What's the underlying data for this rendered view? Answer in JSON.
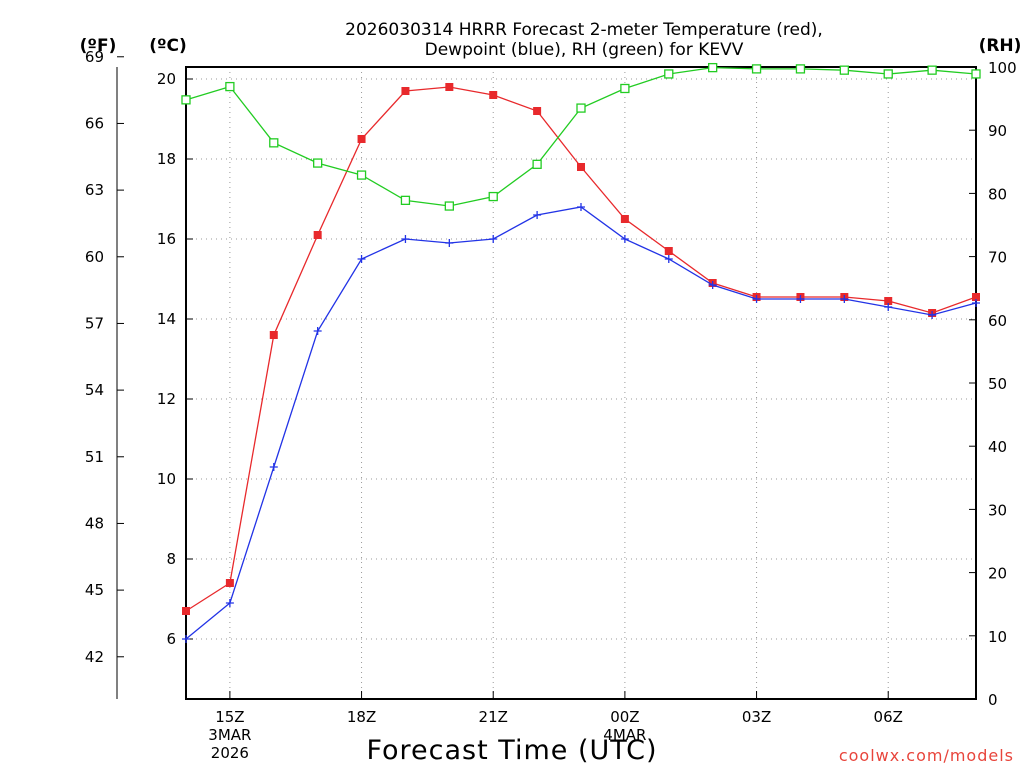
{
  "chart_data": {
    "type": "line",
    "title_line1": "2026030314 HRRR Forecast 2-meter Temperature (red),",
    "title_line2": "Dewpoint (blue), RH (green) for KEVV",
    "units": {
      "fahrenheit": "(ºF)",
      "celsius": "(ºC)",
      "rh": "(RH)"
    },
    "xlabel": "Forecast Time (UTC)",
    "credit": "coolwx.com/models",
    "x_hours": [
      14,
      15,
      16,
      17,
      18,
      19,
      20,
      21,
      22,
      23,
      24,
      25,
      26,
      27,
      28,
      29,
      30,
      31,
      32
    ],
    "x_range": [
      14,
      32
    ],
    "x_ticks": [
      {
        "hour": 15,
        "lines": [
          "15Z",
          "3MAR",
          "2026"
        ]
      },
      {
        "hour": 18,
        "lines": [
          "18Z"
        ]
      },
      {
        "hour": 21,
        "lines": [
          "21Z"
        ]
      },
      {
        "hour": 24,
        "lines": [
          "00Z",
          "4MAR"
        ]
      },
      {
        "hour": 27,
        "lines": [
          "03Z"
        ]
      },
      {
        "hour": 30,
        "lines": [
          "06Z"
        ]
      }
    ],
    "y_celsius": {
      "range": [
        4.5,
        20.3
      ],
      "ticks": [
        6,
        8,
        10,
        12,
        14,
        16,
        18,
        20
      ]
    },
    "y_fahrenheit": {
      "range": [
        40.1,
        68.54
      ],
      "ticks": [
        42,
        45,
        48,
        51,
        54,
        57,
        60,
        63,
        66,
        69
      ]
    },
    "y_rh": {
      "range": [
        0,
        100
      ],
      "ticks": [
        0,
        10,
        20,
        30,
        40,
        50,
        60,
        70,
        80,
        90,
        100
      ]
    },
    "series": [
      {
        "name": "Temperature",
        "axis": "celsius",
        "color": "#e8292c",
        "marker": "filled-square",
        "values": [
          6.7,
          7.4,
          13.6,
          16.1,
          18.5,
          19.7,
          19.8,
          19.6,
          19.2,
          17.8,
          16.5,
          15.7,
          14.9,
          14.55,
          14.55,
          14.55,
          14.45,
          14.15,
          14.55
        ]
      },
      {
        "name": "Dewpoint",
        "axis": "celsius",
        "color": "#2233e6",
        "marker": "plus",
        "values": [
          6.0,
          6.9,
          10.3,
          13.7,
          15.5,
          16.0,
          15.9,
          16.0,
          16.6,
          16.8,
          16.0,
          15.5,
          14.85,
          14.5,
          14.5,
          14.5,
          14.3,
          14.1,
          14.4
        ]
      },
      {
        "name": "RH",
        "axis": "rh",
        "color": "#22cc22",
        "marker": "open-square",
        "values": [
          94.8,
          96.9,
          88.0,
          84.8,
          82.9,
          78.9,
          78.0,
          79.5,
          84.6,
          93.5,
          96.6,
          98.9,
          99.9,
          99.7,
          99.7,
          99.5,
          98.9,
          99.5,
          98.9
        ]
      }
    ],
    "grid": true
  }
}
